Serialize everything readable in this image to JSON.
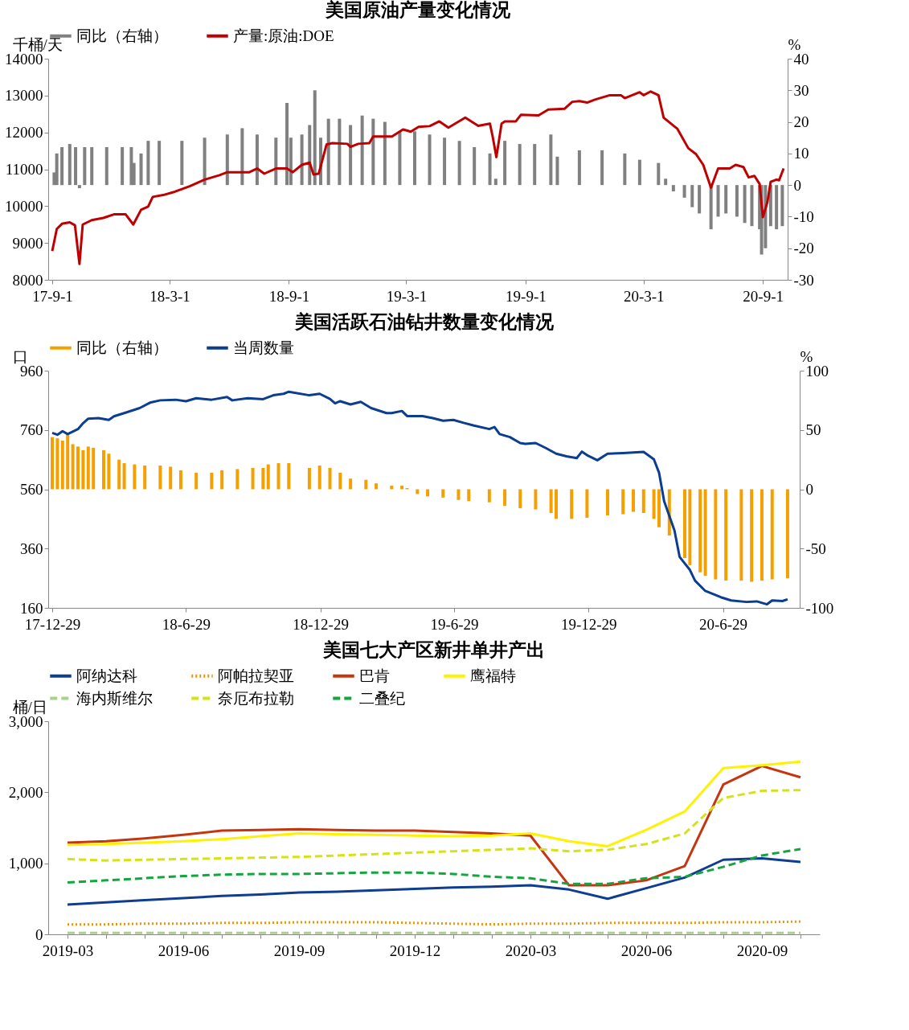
{
  "chart_data": [
    {
      "type": "line",
      "title": "美国原油产量变化情况",
      "ylabel": "千桶/天",
      "y2label": "%",
      "legend": "top",
      "grid": false,
      "xlim": [
        "2017-09-01",
        "2020-10-03"
      ],
      "xticks": [
        {
          "value": "2017-09-01",
          "label": "17-9-1"
        },
        {
          "value": "2018-03-01",
          "label": "18-3-1"
        },
        {
          "value": "2018-09-01",
          "label": "18-9-1"
        },
        {
          "value": "2019-03-01",
          "label": "19-3-1"
        },
        {
          "value": "2019-09-01",
          "label": "19-9-1"
        },
        {
          "value": "2020-03-01",
          "label": "20-3-1"
        },
        {
          "value": "2020-09-01",
          "label": "20-9-1"
        }
      ],
      "ylim": [
        8000,
        14000
      ],
      "yticks": [
        8000,
        9000,
        10000,
        11000,
        12000,
        13000,
        14000
      ],
      "y2lim": [
        -30,
        40
      ],
      "y2ticks": [
        -30,
        -20,
        -10,
        0,
        10,
        20,
        30,
        40
      ],
      "series": [
        {
          "name": "同比（右轴）",
          "type": "bar",
          "axis": "y2",
          "color": "#808080",
          "x": [
            "2017-09-04",
            "2017-09-08",
            "2017-09-16",
            "2017-09-28",
            "2017-10-07",
            "2017-10-13",
            "2017-10-21",
            "2017-11-01",
            "2017-11-24",
            "2017-12-18",
            "2018-01-01",
            "2018-01-05",
            "2018-01-16",
            "2018-01-27",
            "2018-02-13",
            "2018-03-20",
            "2018-04-24",
            "2018-05-29",
            "2018-06-21",
            "2018-07-14",
            "2018-08-12",
            "2018-08-29",
            "2018-09-04",
            "2018-09-21",
            "2018-10-03",
            "2018-10-11",
            "2018-10-20",
            "2018-11-01",
            "2018-11-18",
            "2018-12-05",
            "2018-12-23",
            "2019-01-09",
            "2019-01-27",
            "2019-02-19",
            "2019-03-14",
            "2019-04-06",
            "2019-04-29",
            "2019-05-22",
            "2019-06-14",
            "2019-07-08",
            "2019-07-17",
            "2019-07-31",
            "2019-08-23",
            "2019-09-15",
            "2019-10-10",
            "2019-10-20",
            "2019-11-23",
            "2019-12-28",
            "2020-02-01",
            "2020-02-24",
            "2020-03-24",
            "2020-04-04",
            "2020-04-16",
            "2020-05-03",
            "2020-05-15",
            "2020-05-26",
            "2020-06-13",
            "2020-06-24",
            "2020-07-06",
            "2020-07-23",
            "2020-08-04",
            "2020-08-15",
            "2020-08-27",
            "2020-08-30",
            "2020-09-05",
            "2020-09-13",
            "2020-09-22",
            "2020-10-01"
          ],
          "values": [
            4,
            10,
            12,
            13,
            12,
            -1,
            12,
            12,
            12,
            12,
            12,
            7,
            10,
            14,
            14,
            14,
            15,
            16,
            18,
            16,
            15,
            26,
            15,
            16,
            19,
            30,
            15,
            21,
            21,
            19,
            22,
            21,
            20,
            17,
            17,
            16,
            15,
            14,
            12,
            10,
            2,
            14,
            13,
            13,
            16,
            9,
            11,
            11,
            10,
            8,
            7,
            2,
            -2,
            -4,
            -7,
            -9,
            -14,
            -10,
            -9,
            -10,
            -12,
            -13,
            -14,
            -22,
            -20,
            -13,
            -14,
            -13
          ]
        },
        {
          "name": "产量:原油:DOE",
          "type": "line",
          "color": "#c00000",
          "x": [
            "2017-09-01",
            "2017-09-08",
            "2017-09-16",
            "2017-09-28",
            "2017-10-06",
            "2017-10-13",
            "2017-10-18",
            "2017-11-01",
            "2017-11-19",
            "2017-12-06",
            "2017-12-23",
            "2018-01-04",
            "2018-01-16",
            "2018-01-27",
            "2018-02-03",
            "2018-02-19",
            "2018-03-09",
            "2018-04-01",
            "2018-04-24",
            "2018-05-17",
            "2018-05-29",
            "2018-07-02",
            "2018-07-14",
            "2018-07-25",
            "2018-08-12",
            "2018-08-29",
            "2018-09-07",
            "2018-09-21",
            "2018-10-03",
            "2018-10-09",
            "2018-10-17",
            "2018-10-29",
            "2018-11-07",
            "2018-11-30",
            "2018-12-05",
            "2018-12-17",
            "2019-01-03",
            "2019-01-09",
            "2019-02-07",
            "2019-02-24",
            "2019-03-08",
            "2019-03-20",
            "2019-04-06",
            "2019-04-21",
            "2019-05-05",
            "2019-05-31",
            "2019-06-20",
            "2019-07-08",
            "2019-07-12",
            "2019-07-18",
            "2019-07-26",
            "2019-07-31",
            "2019-08-17",
            "2019-08-25",
            "2019-09-21",
            "2019-10-06",
            "2019-10-31",
            "2019-11-12",
            "2019-11-23",
            "2019-12-05",
            "2019-12-17",
            "2020-01-09",
            "2020-01-26",
            "2020-02-01",
            "2020-02-24",
            "2020-03-01",
            "2020-03-12",
            "2020-03-24",
            "2020-04-01",
            "2020-04-22",
            "2020-05-09",
            "2020-05-21",
            "2020-06-01",
            "2020-06-13",
            "2020-06-24",
            "2020-07-12",
            "2020-07-21",
            "2020-08-02",
            "2020-08-10",
            "2020-08-19",
            "2020-08-27",
            "2020-09-01",
            "2020-09-08",
            "2020-09-13",
            "2020-09-22",
            "2020-09-26",
            "2020-10-03"
          ],
          "values": [
            8780,
            9380,
            9520,
            9560,
            9480,
            8430,
            9500,
            9620,
            9680,
            9780,
            9780,
            9500,
            9900,
            9990,
            10250,
            10300,
            10390,
            10540,
            10720,
            10840,
            10920,
            10920,
            11020,
            10880,
            11020,
            11020,
            10920,
            11120,
            11180,
            10860,
            10880,
            11670,
            11710,
            11690,
            11610,
            11690,
            11710,
            11890,
            11890,
            12080,
            12020,
            12150,
            12170,
            12300,
            12130,
            12400,
            12180,
            12240,
            11910,
            11330,
            12240,
            12300,
            12300,
            12480,
            12460,
            12620,
            12640,
            12830,
            12850,
            12810,
            12890,
            13010,
            13010,
            12930,
            13090,
            13010,
            13110,
            13010,
            12400,
            12100,
            11570,
            11410,
            11120,
            10500,
            11020,
            11020,
            11120,
            11060,
            10780,
            10820,
            10600,
            9700,
            10110,
            10660,
            10720,
            10700,
            11020
          ]
        }
      ]
    },
    {
      "type": "line",
      "title": "美国活跃石油钻井数量变化情况",
      "ylabel": "口",
      "y2label": "%",
      "legend": "top",
      "grid": false,
      "xlim": [
        "2017-12-29",
        "2020-10-06"
      ],
      "xticks": [
        {
          "value": "2017-12-29",
          "label": "17-12-29"
        },
        {
          "value": "2018-06-29",
          "label": "18-6-29"
        },
        {
          "value": "2018-12-29",
          "label": "18-12-29"
        },
        {
          "value": "2019-06-29",
          "label": "19-6-29"
        },
        {
          "value": "2019-12-29",
          "label": "19-12-29"
        },
        {
          "value": "2020-06-29",
          "label": "20-6-29"
        }
      ],
      "ylim": [
        160,
        960
      ],
      "yticks": [
        160,
        360,
        560,
        760,
        960
      ],
      "y2lim": [
        -100,
        100
      ],
      "y2ticks": [
        -100,
        -50,
        0,
        50,
        100
      ],
      "series": [
        {
          "name": "同比（右轴）",
          "type": "bar",
          "axis": "y2",
          "color": "#f5a000",
          "x": [
            "2017-12-29",
            "2018-01-05",
            "2018-01-12",
            "2018-01-19",
            "2018-01-26",
            "2018-02-02",
            "2018-02-09",
            "2018-02-16",
            "2018-02-23",
            "2018-03-09",
            "2018-03-16",
            "2018-03-30",
            "2018-04-06",
            "2018-04-20",
            "2018-05-04",
            "2018-05-25",
            "2018-06-08",
            "2018-06-22",
            "2018-07-13",
            "2018-08-03",
            "2018-08-17",
            "2018-09-07",
            "2018-09-28",
            "2018-10-12",
            "2018-10-19",
            "2018-11-02",
            "2018-11-16",
            "2018-12-14",
            "2018-12-28",
            "2019-01-11",
            "2019-01-25",
            "2019-02-08",
            "2019-03-01",
            "2019-03-15",
            "2019-04-05",
            "2019-04-19",
            "2019-04-26",
            "2019-05-10",
            "2019-05-24",
            "2019-06-14",
            "2019-07-05",
            "2019-07-19",
            "2019-08-16",
            "2019-09-06",
            "2019-09-27",
            "2019-10-18",
            "2019-11-08",
            "2019-11-15",
            "2019-12-06",
            "2019-12-27",
            "2020-01-24",
            "2020-02-14",
            "2020-02-28",
            "2020-03-13",
            "2020-03-27",
            "2020-04-03",
            "2020-04-17",
            "2020-05-08",
            "2020-05-15",
            "2020-05-29",
            "2020-06-05",
            "2020-06-19",
            "2020-07-03",
            "2020-07-24",
            "2020-08-07",
            "2020-08-21",
            "2020-09-04",
            "2020-09-25"
          ],
          "values": [
            44,
            43,
            41,
            47,
            38,
            36,
            33,
            36,
            35,
            33,
            30,
            25,
            22,
            21,
            20,
            20,
            19,
            16,
            14,
            14,
            16,
            17,
            18,
            18,
            21,
            22,
            22,
            18,
            20,
            18,
            14,
            9,
            8,
            5,
            3,
            3,
            1,
            -4,
            -6,
            -7,
            -9,
            -10,
            -11,
            -14,
            -16,
            -17,
            -20,
            -25,
            -25,
            -24,
            -22,
            -21,
            -19,
            -20,
            -25,
            -32,
            -39,
            -58,
            -64,
            -70,
            -73,
            -76,
            -77,
            -77,
            -78,
            -77,
            -76,
            -75
          ]
        },
        {
          "name": "当周数量",
          "type": "line",
          "color": "#0b3d91",
          "x": [
            "2017-12-29",
            "2018-01-05",
            "2018-01-12",
            "2018-01-19",
            "2018-02-02",
            "2018-02-09",
            "2018-02-16",
            "2018-03-02",
            "2018-03-16",
            "2018-03-23",
            "2018-04-06",
            "2018-04-27",
            "2018-05-11",
            "2018-05-25",
            "2018-06-15",
            "2018-06-29",
            "2018-07-13",
            "2018-08-03",
            "2018-08-24",
            "2018-08-31",
            "2018-09-21",
            "2018-10-12",
            "2018-10-26",
            "2018-11-09",
            "2018-11-16",
            "2018-12-14",
            "2018-12-28",
            "2019-01-11",
            "2019-01-18",
            "2019-01-25",
            "2019-02-08",
            "2019-02-22",
            "2019-03-08",
            "2019-03-29",
            "2019-04-05",
            "2019-04-19",
            "2019-04-26",
            "2019-05-17",
            "2019-05-31",
            "2019-06-14",
            "2019-06-28",
            "2019-07-12",
            "2019-07-26",
            "2019-08-16",
            "2019-08-23",
            "2019-08-30",
            "2019-09-13",
            "2019-09-27",
            "2019-10-04",
            "2019-10-18",
            "2019-11-01",
            "2019-11-15",
            "2019-11-29",
            "2019-12-13",
            "2019-12-20",
            "2019-12-27",
            "2020-01-10",
            "2020-01-24",
            "2020-02-14",
            "2020-02-28",
            "2020-03-13",
            "2020-03-27",
            "2020-04-03",
            "2020-04-10",
            "2020-04-24",
            "2020-05-01",
            "2020-05-15",
            "2020-05-22",
            "2020-06-05",
            "2020-06-26",
            "2020-07-10",
            "2020-07-31",
            "2020-08-14",
            "2020-08-28",
            "2020-09-04",
            "2020-09-18",
            "2020-09-25"
          ],
          "values": [
            750,
            744,
            756,
            746,
            763,
            783,
            798,
            800,
            794,
            806,
            817,
            834,
            852,
            860,
            862,
            857,
            867,
            862,
            871,
            860,
            867,
            864,
            877,
            882,
            889,
            877,
            882,
            865,
            850,
            857,
            846,
            855,
            834,
            817,
            817,
            824,
            807,
            807,
            800,
            791,
            794,
            784,
            775,
            763,
            770,
            746,
            736,
            716,
            713,
            716,
            699,
            680,
            671,
            665,
            687,
            675,
            658,
            680,
            682,
            684,
            686,
            661,
            616,
            519,
            421,
            332,
            288,
            252,
            217,
            196,
            185,
            180,
            182,
            172,
            185,
            183,
            189
          ]
        }
      ]
    },
    {
      "type": "line",
      "title": "美国七大产区新井单井产出",
      "ylabel": "桶/日",
      "legend": "top",
      "grid": false,
      "categories": [
        "2019-03",
        null,
        null,
        "2019-06",
        null,
        null,
        "2019-09",
        null,
        null,
        "2019-12",
        null,
        null,
        "2020-03",
        null,
        null,
        "2020-06",
        null,
        null,
        "2020-09",
        null
      ],
      "ylim": [
        0,
        3000
      ],
      "yticks": [
        0,
        {
          "value": 1000,
          "label": "1,000"
        },
        {
          "value": 2000,
          "label": "2,000"
        },
        {
          "value": 3000,
          "label": "3,000"
        }
      ],
      "series": [
        {
          "name": "阿纳达科",
          "color": "#0f3d91",
          "line_style": "solid",
          "values": [
            420,
            450,
            480,
            510,
            540,
            560,
            590,
            600,
            620,
            640,
            660,
            670,
            690,
            630,
            500,
            650,
            800,
            1050,
            1070,
            1020
          ]
        },
        {
          "name": "阿帕拉契亚",
          "color": "#f39200",
          "line_style": "dotted",
          "values": [
            140,
            140,
            150,
            150,
            160,
            160,
            170,
            170,
            170,
            160,
            150,
            140,
            150,
            150,
            160,
            160,
            160,
            170,
            170,
            180
          ]
        },
        {
          "name": "巴肯",
          "color": "#c5360f",
          "line_style": "solid",
          "values": [
            1290,
            1310,
            1350,
            1400,
            1460,
            1470,
            1480,
            1470,
            1460,
            1460,
            1440,
            1420,
            1390,
            690,
            690,
            760,
            960,
            2110,
            2370,
            2210
          ]
        },
        {
          "name": "鹰福特",
          "color": "#fff200",
          "line_style": "solid",
          "values": [
            1260,
            1270,
            1290,
            1310,
            1340,
            1380,
            1420,
            1410,
            1400,
            1390,
            1380,
            1390,
            1420,
            1310,
            1240,
            1470,
            1730,
            2340,
            2380,
            2430
          ]
        },
        {
          "name": "海内斯维尔",
          "color": "#a9d18e",
          "line_style": "dashed",
          "values": [
            20,
            20,
            20,
            20,
            20,
            20,
            20,
            20,
            20,
            20,
            20,
            20,
            20,
            20,
            20,
            20,
            20,
            20,
            20,
            20
          ]
        },
        {
          "name": "奈厄布拉勒",
          "color": "#d4e21b",
          "line_style": "dashed",
          "values": [
            1060,
            1040,
            1050,
            1060,
            1070,
            1080,
            1090,
            1110,
            1130,
            1150,
            1170,
            1190,
            1210,
            1170,
            1190,
            1270,
            1420,
            1920,
            2020,
            2030
          ]
        },
        {
          "name": "二叠纪",
          "color": "#15a53f",
          "line_style": "dashed",
          "values": [
            730,
            760,
            790,
            820,
            840,
            850,
            850,
            860,
            870,
            870,
            850,
            810,
            790,
            710,
            710,
            790,
            810,
            950,
            1110,
            1200
          ]
        }
      ]
    }
  ]
}
